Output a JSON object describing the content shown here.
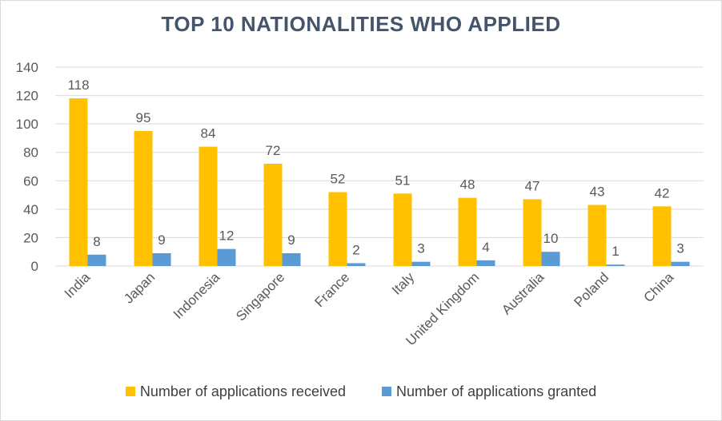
{
  "chart_data": {
    "type": "bar",
    "title": "TOP 10 NATIONALITIES WHO APPLIED",
    "categories": [
      "India",
      "Japan",
      "Indonesia",
      "Singapore",
      "France",
      "Italy",
      "United Kingdom",
      "Australia",
      "Poland",
      "China"
    ],
    "series": [
      {
        "name": "Number of applications received",
        "color": "#ffc000",
        "values": [
          118,
          95,
          84,
          72,
          52,
          51,
          48,
          47,
          43,
          42
        ]
      },
      {
        "name": "Number of applications granted",
        "color": "#5b9bd5",
        "values": [
          8,
          9,
          12,
          9,
          2,
          3,
          4,
          10,
          1,
          3
        ]
      }
    ],
    "yticks": [
      0,
      20,
      40,
      60,
      80,
      100,
      120,
      140
    ],
    "ylim": [
      0,
      140
    ],
    "grid": true,
    "legend_position": "bottom",
    "data_labels": true
  }
}
